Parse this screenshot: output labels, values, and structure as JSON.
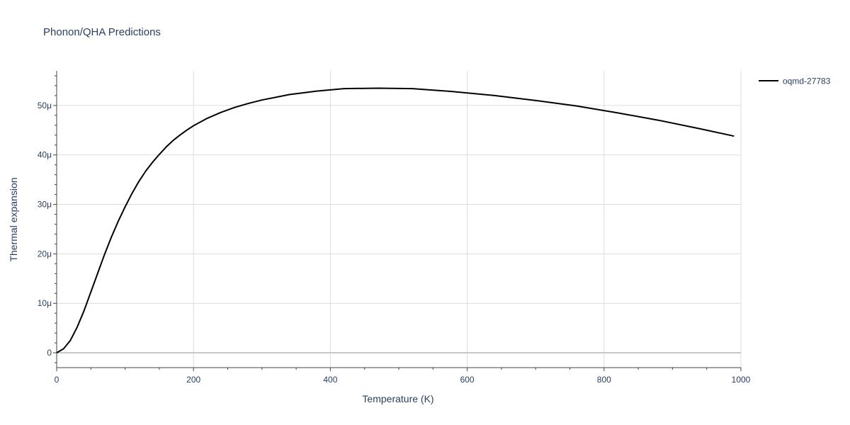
{
  "chart_data": {
    "type": "line",
    "title": "Phonon/QHA Predictions",
    "xlabel": "Temperature (K)",
    "ylabel": "Thermal expansion",
    "xlim": [
      0,
      1000
    ],
    "ylim": [
      -3,
      57
    ],
    "x_ticks": [
      0,
      200,
      400,
      600,
      800,
      1000
    ],
    "x_tick_labels": [
      "0",
      "200",
      "400",
      "600",
      "800",
      "1000"
    ],
    "y_ticks": [
      0,
      10,
      20,
      30,
      40,
      50
    ],
    "y_tick_labels": [
      "0",
      "10μ",
      "20μ",
      "30μ",
      "40μ",
      "50μ"
    ],
    "grid": true,
    "legend_position": "top-right",
    "series": [
      {
        "name": "oqmd-27783",
        "color": "#000000",
        "x": [
          0,
          10,
          20,
          30,
          40,
          50,
          60,
          70,
          80,
          90,
          100,
          110,
          120,
          130,
          140,
          150,
          160,
          170,
          180,
          190,
          200,
          220,
          240,
          260,
          280,
          300,
          340,
          380,
          420,
          470,
          520,
          580,
          640,
          700,
          760,
          820,
          880,
          940,
          990
        ],
        "values": [
          0,
          0.8,
          2.5,
          5.2,
          8.5,
          12.3,
          16.1,
          19.9,
          23.4,
          26.6,
          29.5,
          32.2,
          34.6,
          36.7,
          38.5,
          40.1,
          41.6,
          42.9,
          44.0,
          45.0,
          45.9,
          47.4,
          48.6,
          49.6,
          50.4,
          51.1,
          52.2,
          52.9,
          53.4,
          53.5,
          53.4,
          52.8,
          52.0,
          51.0,
          49.9,
          48.5,
          47.0,
          45.3,
          43.8
        ]
      }
    ]
  }
}
